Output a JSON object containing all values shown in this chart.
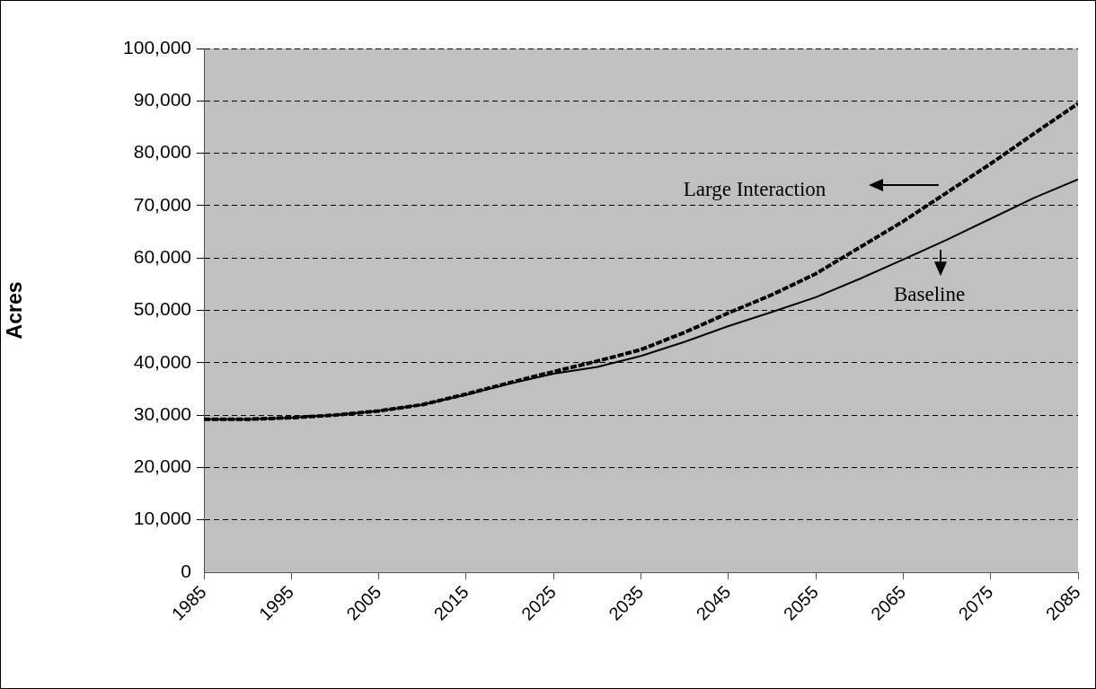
{
  "chart_data": {
    "type": "line",
    "ylabel": "Acres",
    "x": [
      1985,
      1990,
      1995,
      2000,
      2005,
      2010,
      2015,
      2020,
      2025,
      2030,
      2035,
      2040,
      2045,
      2050,
      2055,
      2060,
      2065,
      2070,
      2075,
      2080,
      2085
    ],
    "series": [
      {
        "name": "Large Interaction",
        "color": "#000000",
        "line_style": "dashed",
        "values": [
          29200,
          29200,
          29500,
          30000,
          30800,
          32000,
          34000,
          36200,
          38300,
          40300,
          42500,
          45800,
          49500,
          53000,
          57000,
          62000,
          67000,
          72500,
          78000,
          83800,
          89500
        ]
      },
      {
        "name": "Baseline",
        "color": "#000000",
        "line_style": "solid",
        "values": [
          29200,
          29200,
          29500,
          30000,
          30800,
          32000,
          33900,
          36000,
          37900,
          39200,
          41300,
          44000,
          47000,
          49700,
          52500,
          56000,
          59700,
          63500,
          67500,
          71500,
          75000
        ]
      }
    ],
    "xlim": [
      1985,
      2085
    ],
    "xticks": [
      1985,
      1995,
      2005,
      2015,
      2025,
      2035,
      2045,
      2055,
      2065,
      2075,
      2085
    ],
    "ylim": [
      0,
      100000
    ],
    "yticks": [
      0,
      {
        "value": 10000,
        "label": "10,000"
      },
      {
        "value": 20000,
        "label": "20,000"
      },
      {
        "value": 30000,
        "label": "30,000"
      },
      {
        "value": 40000,
        "label": "40,000"
      },
      {
        "value": 50000,
        "label": "50,000"
      },
      {
        "value": 60000,
        "label": "60,000"
      },
      {
        "value": 70000,
        "label": "70,000"
      },
      {
        "value": 80000,
        "label": "80,000"
      },
      {
        "value": 90000,
        "label": "90,000"
      },
      {
        "value": 100000,
        "label": "100,000"
      }
    ],
    "grid": "y",
    "marker": "none"
  }
}
